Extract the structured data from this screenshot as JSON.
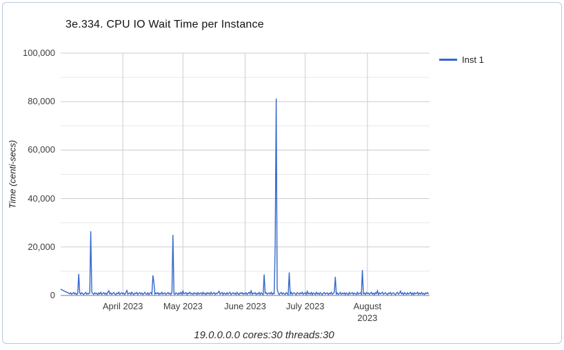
{
  "frame": {
    "border_color": "#b6c9dd"
  },
  "chart_data": {
    "type": "line",
    "title": "3e.334. CPU IO Wait Time per Instance",
    "ylabel": "Time (centi-secs)",
    "caption": "19.0.0.0.0 cores:30 threads:30",
    "legend": [
      {
        "label": "Inst 1",
        "color": "#3366cc"
      }
    ],
    "legend_position": "right",
    "grid": {
      "major_color": "#cccccc",
      "minor_color": "#e8e8e8",
      "baseline_color": "#777777",
      "grid_on": true
    },
    "y_axis": {
      "min": 0,
      "max": 100000,
      "major_step": 20000,
      "minor_step": 10000,
      "tick_values": [
        0,
        20000,
        40000,
        60000,
        80000,
        100000
      ],
      "tick_labels": [
        "0",
        "20,000",
        "40,000",
        "60,000",
        "80,000",
        "100,000"
      ]
    },
    "x_axis": {
      "start": "2023-03-01",
      "total_days": 184,
      "ticks": [
        {
          "day": 31,
          "lines": [
            "April 2023"
          ]
        },
        {
          "day": 61,
          "lines": [
            "May 2023"
          ]
        },
        {
          "day": 92,
          "lines": [
            "June 2023"
          ]
        },
        {
          "day": 122,
          "lines": [
            "July 2023"
          ]
        },
        {
          "day": 153,
          "lines": [
            "August",
            "2023"
          ]
        }
      ]
    },
    "notable_spikes": [
      {
        "date": "2023-03-10",
        "value": 8900
      },
      {
        "date": "2023-03-16",
        "value": 26500
      },
      {
        "date": "2023-04-16",
        "value": 8300
      },
      {
        "date": "2023-04-26",
        "value": 25000
      },
      {
        "date": "2023-06-11",
        "value": 8700
      },
      {
        "date": "2023-06-17",
        "value": 81300
      },
      {
        "date": "2023-06-23",
        "value": 9500
      },
      {
        "date": "2023-07-17",
        "value": 7700
      },
      {
        "date": "2023-07-30",
        "value": 10500
      }
    ],
    "series": [
      {
        "name": "Inst 1",
        "color": "#3366cc",
        "samples_per_day": 2,
        "values": [
          2650,
          2400,
          2150,
          1950,
          1750,
          1550,
          1350,
          1200,
          980,
          620,
          1100,
          480,
          850,
          1240,
          570,
          930,
          410,
          760,
          8900,
          1020,
          540,
          1180,
          660,
          390,
          870,
          1260,
          500,
          940,
          620,
          1090,
          26500,
          1400,
          760,
          430,
          1150,
          680,
          920,
          380,
          1060,
          590,
          1310,
          470,
          840,
          1190,
          520,
          960,
          400,
          1270,
          1900,
          640,
          1080,
          450,
          890,
          1230,
          560,
          370,
          1010,
          720,
          1330,
          490,
          860,
          1140,
          610,
          950,
          420,
          1200,
          2050,
          530,
          880,
          1100,
          470,
          1340,
          690,
          360,
          1020,
          780,
          1250,
          440,
          910,
          1160,
          580,
          1030,
          390,
          820,
          1280,
          650,
          470,
          1120,
          370,
          900,
          1210,
          560,
          8300,
          5400,
          480,
          1060,
          730,
          1180,
          410,
          950,
          620,
          1300,
          520,
          870,
          1090,
          380,
          760,
          1230,
          590,
          1010,
          440,
          1330,
          25000,
          700,
          460,
          1150,
          830,
          390,
          1060,
          570,
          1270,
          480,
          1800,
          640,
          920,
          1190,
          350,
          1020,
          750,
          1310,
          560,
          880,
          420,
          1140,
          670,
          990,
          380,
          1220,
          540,
          860,
          1080,
          460,
          1290,
          610,
          940,
          370,
          1160,
          720,
          1020,
          490,
          1330,
          580,
          830,
          1200,
          440,
          970,
          650,
          1100,
          1750,
          520,
          890,
          1240,
          380,
          1060,
          700,
          460,
          1180,
          550,
          920,
          1320,
          410,
          840,
          1130,
          600,
          980,
          430,
          1270,
          690,
          360,
          1040,
          770,
          1210,
          500,
          930,
          580,
          1150,
          420,
          860,
          1300,
          640,
          1900,
          470,
          1010,
          750,
          1180,
          390,
          880,
          560,
          1260,
          430,
          1100,
          670,
          340,
          8700,
          940,
          1220,
          480,
          830,
          1060,
          590,
          1310,
          450,
          970,
          720,
          20000,
          81300,
          2600,
          1130,
          380,
          900,
          1250,
          540,
          1020,
          660,
          430,
          1190,
          780,
          350,
          9500,
          570,
          1280,
          460,
          940,
          1100,
          620,
          380,
          1230,
          850,
          510,
          1060,
          700,
          1320,
          480,
          890,
          1150,
          400,
          1700,
          620,
          960,
          530,
          1240,
          370,
          1080,
          740,
          420,
          1300,
          580,
          1010,
          460,
          1170,
          690,
          350,
          930,
          1260,
          540,
          820,
          1120,
          390,
          970,
          640,
          1350,
          500,
          880,
          1200,
          7700,
          560,
          1030,
          410,
          760,
          1290,
          470,
          950,
          620,
          1140,
          380,
          1060,
          720,
          340,
          1250,
          590,
          900,
          1180,
          440,
          1020,
          680,
          370,
          1310,
          550,
          840,
          1100,
          470,
          10500,
          630,
          960,
          390,
          1220,
          760,
          1040,
          450,
          870,
          1280,
          520,
          980,
          350,
          1160,
          700,
          1950,
          420,
          1090,
          640,
          930,
          1330,
          480,
          810,
          1170,
          560,
          380,
          1010,
          750,
          1240,
          430,
          890,
          1120,
          600,
          340,
          970,
          1290,
          510,
          860,
          1800,
          660,
          1050,
          370,
          1210,
          730,
          440,
          1130,
          580,
          920,
          1270,
          490,
          1000,
          350,
          1140,
          680,
          820,
          1320,
          460,
          990,
          610,
          1230,
          530,
          870,
          400,
          1060,
          760,
          1180,
          540
        ]
      }
    ]
  }
}
